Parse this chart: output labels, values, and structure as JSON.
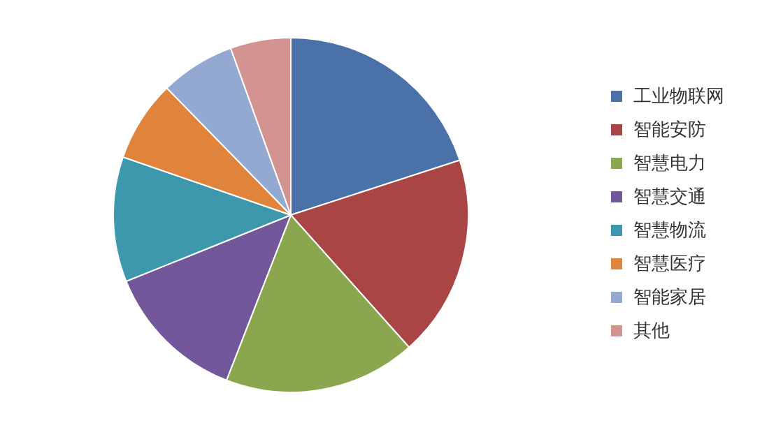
{
  "chart_data": {
    "type": "pie",
    "categories": [
      "工业物联网",
      "智能安防",
      "智慧电力",
      "智慧交通",
      "智慧物流",
      "智慧医疗",
      "智能家居",
      "其他"
    ],
    "values": [
      20,
      18.4,
      17.5,
      13,
      11.4,
      7.4,
      6.8,
      5.5
    ],
    "colors": [
      "#4a72a8",
      "#a94544",
      "#8aa64e",
      "#72589a",
      "#3e98ad",
      "#e0843c",
      "#93a9d2",
      "#d39391"
    ],
    "legend": "right"
  }
}
